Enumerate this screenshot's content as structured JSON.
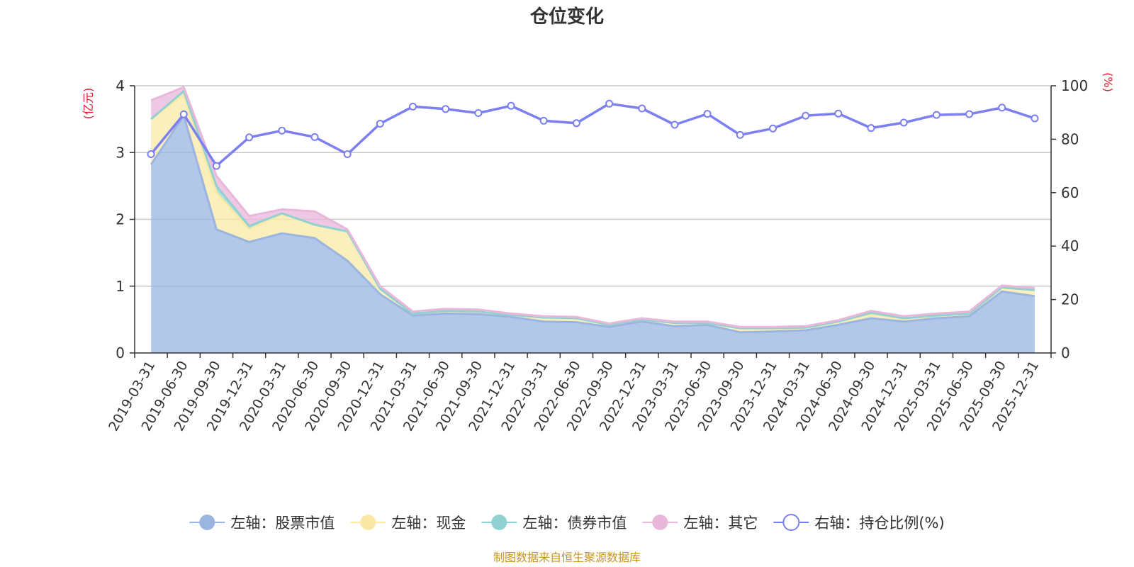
{
  "chart_data": {
    "type": "area",
    "title": "仓位变化",
    "left_unit": "(亿元)",
    "right_unit": "(%)",
    "source": "制图数据来自恒生聚源数据库",
    "x": [
      "2019-03-31",
      "2019-06-30",
      "2019-09-30",
      "2019-12-31",
      "2020-03-31",
      "2020-06-30",
      "2020-09-30",
      "2020-12-31",
      "2021-03-31",
      "2021-06-30",
      "2021-09-30",
      "2021-12-31",
      "2022-03-31",
      "2022-06-30",
      "2022-09-30",
      "2022-12-31",
      "2023-03-31",
      "2023-06-30",
      "2023-09-30",
      "2023-12-31",
      "2024-03-31",
      "2024-06-30",
      "2024-09-30",
      "2024-12-31",
      "2025-03-31",
      "2025-06-30",
      "2025-09-30",
      "2025-12-31"
    ],
    "left_axis": {
      "min": 0,
      "max": 4,
      "ticks": [
        0,
        1,
        2,
        3,
        4
      ]
    },
    "right_axis": {
      "min": 0,
      "max": 100,
      "ticks": [
        0,
        20,
        40,
        60,
        80,
        100
      ]
    },
    "stack_series": [
      {
        "name": "左轴：股票市值",
        "color": "#9ab5e0",
        "values": [
          2.82,
          3.55,
          1.85,
          1.66,
          1.79,
          1.72,
          1.38,
          0.88,
          0.56,
          0.59,
          0.58,
          0.54,
          0.47,
          0.46,
          0.39,
          0.47,
          0.4,
          0.42,
          0.31,
          0.32,
          0.34,
          0.42,
          0.52,
          0.47,
          0.52,
          0.55,
          0.92,
          0.85
        ]
      },
      {
        "name": "左轴：现金",
        "color": "#fae9a5",
        "values": [
          0.68,
          0.32,
          0.55,
          0.19,
          0.29,
          0.2,
          0.44,
          0.08,
          0.03,
          0.04,
          0.04,
          0.03,
          0.06,
          0.06,
          0.03,
          0.03,
          0.05,
          0.03,
          0.06,
          0.05,
          0.04,
          0.05,
          0.06,
          0.04,
          0.04,
          0.04,
          0.06,
          0.09
        ]
      },
      {
        "name": "左轴：债券市值",
        "color": "#92d1d2",
        "values": [
          0.0,
          0.05,
          0.1,
          0.05,
          0.01,
          0.0,
          0.0,
          0.0,
          0.0,
          0.0,
          0.0,
          0.0,
          0.0,
          0.0,
          0.0,
          0.0,
          0.0,
          0.0,
          0.0,
          0.0,
          0.0,
          0.0,
          0.02,
          0.01,
          0.0,
          0.0,
          0.0,
          0.0
        ]
      },
      {
        "name": "左轴：其它",
        "color": "#e9b7da",
        "values": [
          0.28,
          0.06,
          0.15,
          0.15,
          0.06,
          0.2,
          0.03,
          0.04,
          0.03,
          0.03,
          0.03,
          0.02,
          0.02,
          0.02,
          0.02,
          0.02,
          0.02,
          0.02,
          0.02,
          0.02,
          0.02,
          0.02,
          0.03,
          0.03,
          0.03,
          0.03,
          0.03,
          0.03
        ]
      }
    ],
    "line_series": {
      "name": "右轴：持仓比例(%)",
      "color": "#7b7ff0",
      "values": [
        74.4,
        89.3,
        70.0,
        80.7,
        83.2,
        80.8,
        74.4,
        85.8,
        92.2,
        91.3,
        89.8,
        92.5,
        86.9,
        86.0,
        93.3,
        91.5,
        85.4,
        89.5,
        81.6,
        84.0,
        88.8,
        89.6,
        84.2,
        86.2,
        89.1,
        89.4,
        91.8,
        87.8
      ]
    },
    "legend_position": "bottom-center",
    "grid": true
  }
}
